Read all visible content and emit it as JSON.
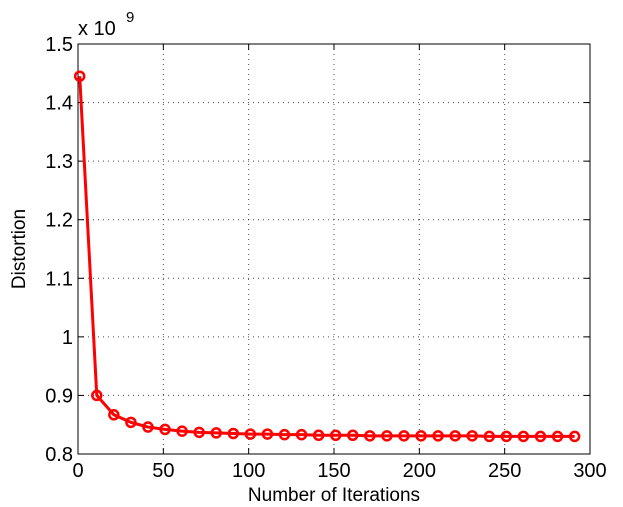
{
  "chart_data": {
    "type": "line",
    "title": "",
    "xlabel": "Number of Iterations",
    "ylabel": "Distortion",
    "xlim": [
      0,
      300
    ],
    "ylim": [
      0.8,
      1.5
    ],
    "xticks": [
      0,
      50,
      100,
      150,
      200,
      250,
      300
    ],
    "xtick_labels": [
      "0",
      "50",
      "100",
      "150",
      "200",
      "250",
      "300"
    ],
    "yticks": [
      0.8,
      0.9,
      1.0,
      1.1,
      1.2,
      1.3,
      1.4,
      1.5
    ],
    "ytick_labels": [
      "0.8",
      "0.9",
      "1",
      "1.1",
      "1.2",
      "1.3",
      "1.4",
      "1.5"
    ],
    "y_multiplier": {
      "base": "x 10",
      "exponent": "9"
    },
    "grid": true,
    "series": [
      {
        "color": "#ff0000",
        "marker": "circle",
        "x": [
          1,
          11,
          21,
          31,
          41,
          51,
          61,
          71,
          81,
          91,
          101,
          111,
          121,
          131,
          141,
          151,
          161,
          171,
          181,
          191,
          201,
          211,
          221,
          231,
          241,
          251,
          261,
          271,
          281,
          291
        ],
        "y": [
          1.445,
          0.9,
          0.867,
          0.854,
          0.846,
          0.842,
          0.839,
          0.837,
          0.836,
          0.835,
          0.834,
          0.834,
          0.833,
          0.833,
          0.832,
          0.832,
          0.832,
          0.831,
          0.831,
          0.831,
          0.831,
          0.831,
          0.831,
          0.831,
          0.83,
          0.83,
          0.83,
          0.83,
          0.83,
          0.83
        ]
      }
    ]
  }
}
